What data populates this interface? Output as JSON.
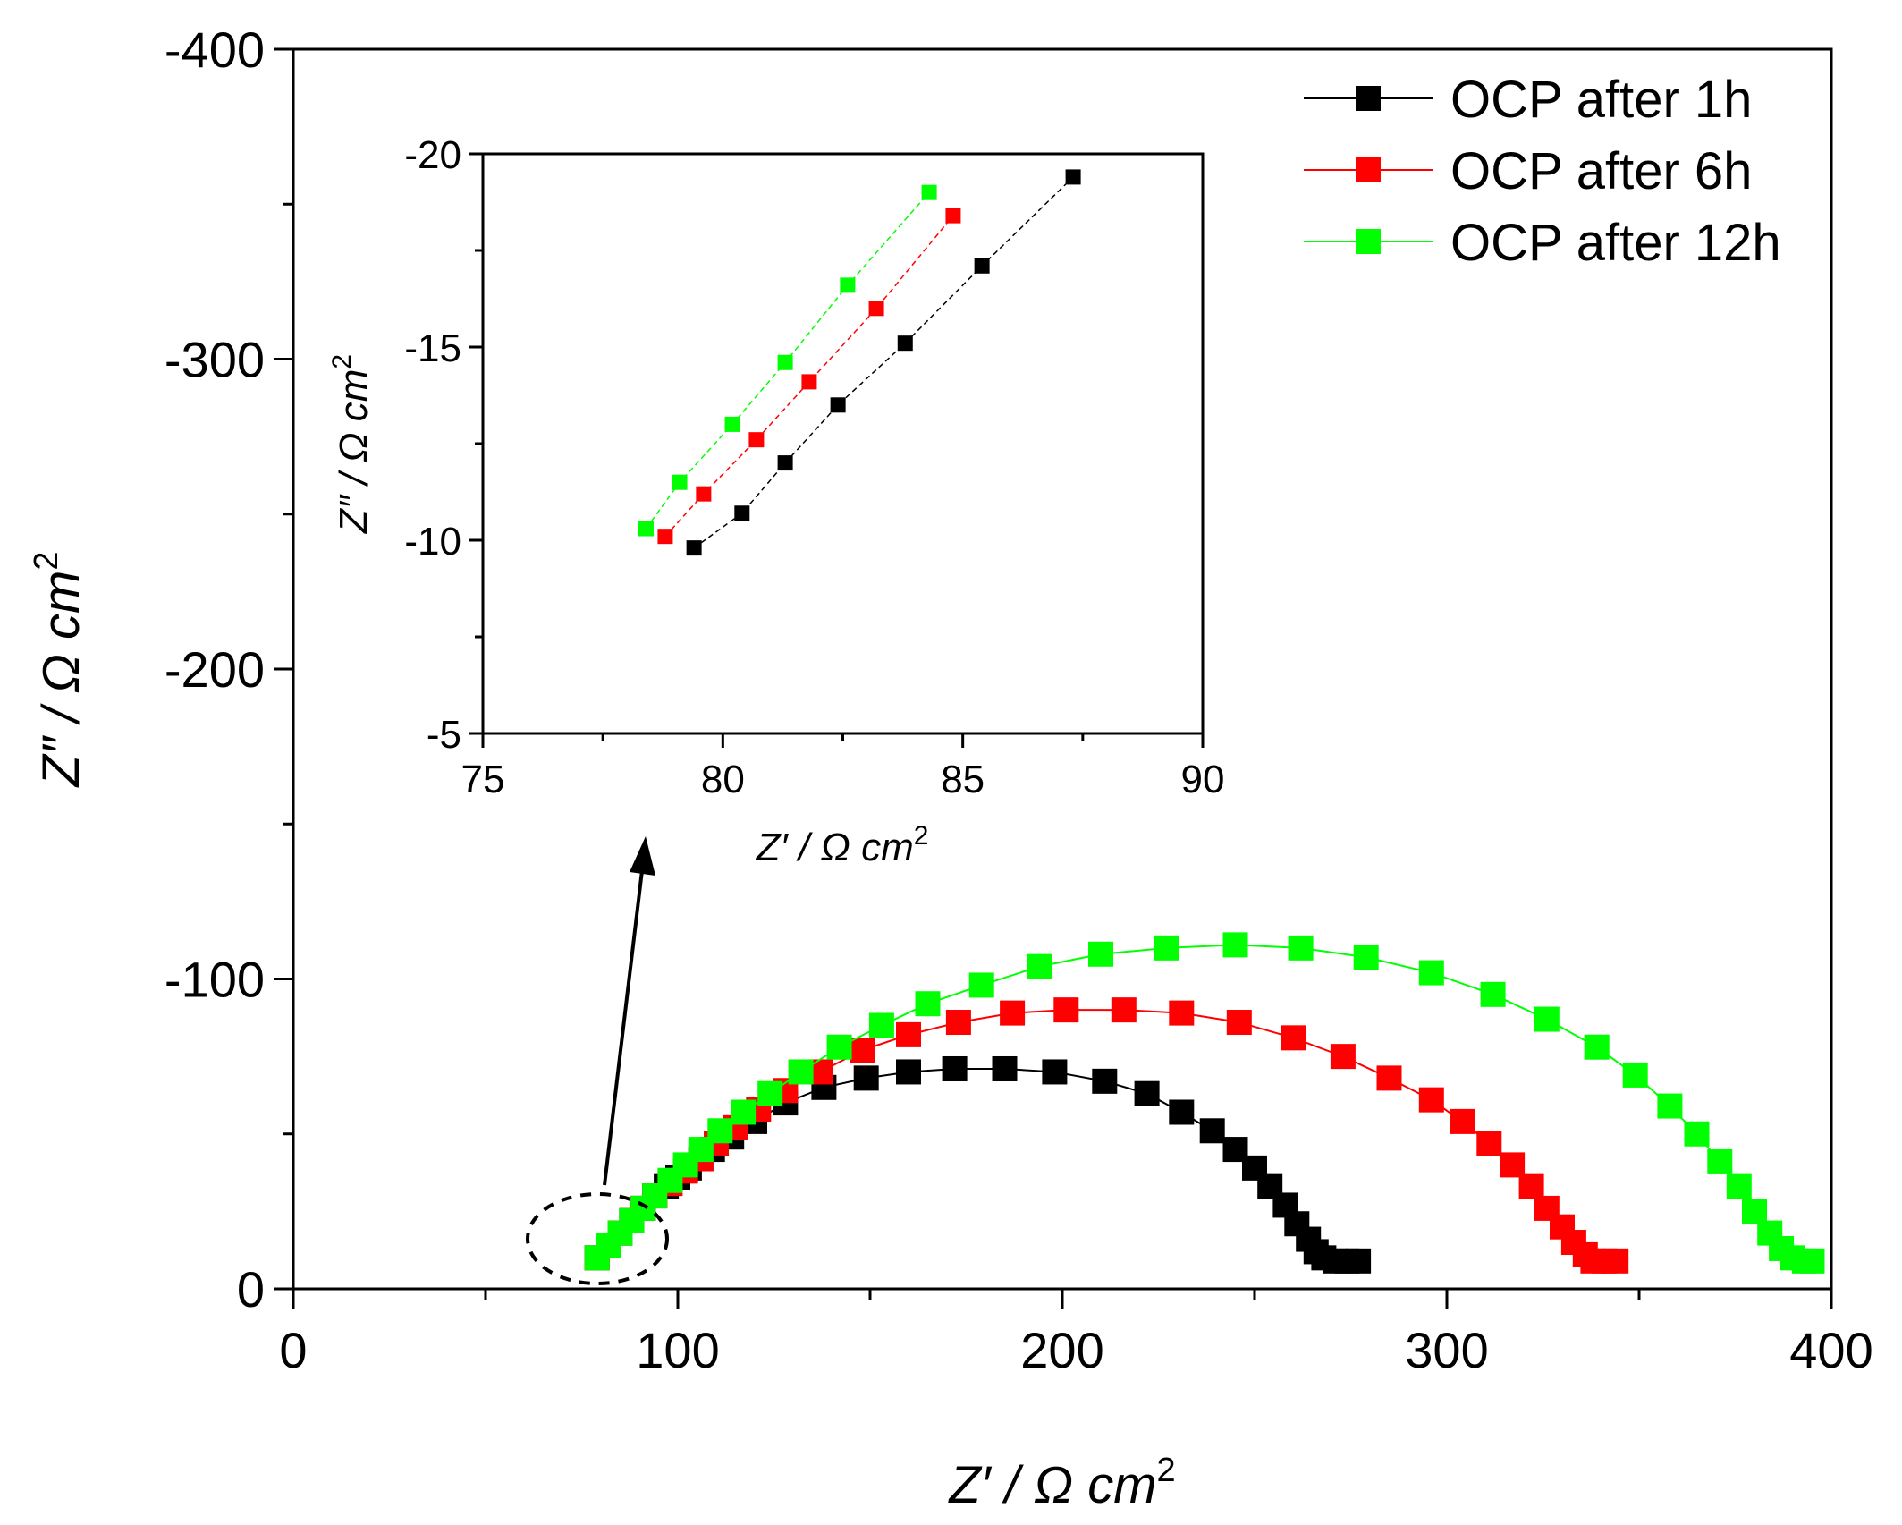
{
  "chart_data": {
    "type": "scatter",
    "series_style": "line with square markers",
    "main": {
      "xlabel": "Z′ / Ω cm",
      "ylabel": "Z″ / Ω cm",
      "unit_superscript": "2",
      "xlim": [
        0,
        400
      ],
      "ylim": [
        0,
        -400
      ],
      "xticks": [
        0,
        100,
        200,
        300,
        400
      ],
      "yticks": [
        0,
        -100,
        -200,
        -300,
        -400
      ],
      "xtick_labels": [
        "0",
        "100",
        "200",
        "300",
        "400"
      ],
      "ytick_labels": [
        "0",
        "-100",
        "-200",
        "-300",
        "-400"
      ],
      "legend": "top-right",
      "grid": false,
      "annotation": "dashed ellipse around high-frequency region (~80 Ω cm2) with arrow pointing to inset"
    },
    "inset": {
      "xlabel": "Z′ / Ω cm",
      "ylabel": "Z″ / Ω cm",
      "unit_superscript": "2",
      "xlim": [
        75,
        90
      ],
      "ylim": [
        -5,
        -20
      ],
      "xticks": [
        75,
        80,
        85,
        90
      ],
      "yticks": [
        -5,
        -10,
        -15,
        -20
      ],
      "xtick_labels": [
        "75",
        "80",
        "85",
        "90"
      ],
      "ytick_labels": [
        "-5",
        "-10",
        "-15",
        "-20"
      ]
    },
    "series": [
      {
        "name": "OCP after 1h",
        "color": "#000000",
        "x": [
          79,
          82,
          85,
          88,
          91,
          94,
          97,
          100,
          103,
          106,
          109,
          114,
          120,
          128,
          138,
          149,
          160,
          172,
          185,
          198,
          211,
          222,
          231,
          239,
          245,
          250,
          254,
          258,
          261,
          264,
          266,
          268,
          271,
          274,
          277
        ],
        "y": [
          -10,
          -14,
          -18,
          -22,
          -26,
          -30,
          -33,
          -36,
          -39,
          -42,
          -45,
          -49,
          -54,
          -60,
          -65,
          -68,
          -70,
          -71,
          -71,
          -70,
          -67,
          -63,
          -57,
          -51,
          -45,
          -39,
          -33,
          -27,
          -21,
          -16,
          -12,
          -10,
          -9,
          -9,
          -9
        ]
      },
      {
        "name": "OCP after 6h",
        "color": "#ff0000",
        "x": [
          79,
          82,
          85,
          88,
          91,
          94,
          98,
          102,
          106,
          110,
          115,
          121,
          128,
          137,
          148,
          160,
          173,
          187,
          201,
          216,
          231,
          246,
          260,
          273,
          285,
          296,
          304,
          311,
          317,
          322,
          326,
          330,
          333,
          336,
          338,
          341,
          344
        ],
        "y": [
          -10,
          -14,
          -18,
          -22,
          -26,
          -30,
          -34,
          -38,
          -42,
          -47,
          -52,
          -58,
          -64,
          -70,
          -77,
          -82,
          -86,
          -89,
          -90,
          -90,
          -89,
          -86,
          -81,
          -75,
          -68,
          -61,
          -54,
          -47,
          -40,
          -33,
          -26,
          -20,
          -15,
          -11,
          -9,
          -9,
          -9
        ]
      },
      {
        "name": "OCP after 12h",
        "color": "#00ff00",
        "x": [
          79,
          82,
          85,
          88,
          91,
          94,
          98,
          102,
          106,
          111,
          117,
          124,
          132,
          142,
          153,
          165,
          179,
          194,
          210,
          227,
          245,
          262,
          279,
          296,
          312,
          326,
          339,
          349,
          358,
          365,
          371,
          376,
          380,
          384,
          387,
          390,
          393,
          395
        ],
        "y": [
          -10,
          -14,
          -18,
          -22,
          -26,
          -30,
          -35,
          -40,
          -45,
          -51,
          -57,
          -63,
          -70,
          -78,
          -85,
          -92,
          -98,
          -104,
          -108,
          -110,
          -111,
          -110,
          -107,
          -102,
          -95,
          -87,
          -78,
          -69,
          -59,
          -50,
          -41,
          -33,
          -25,
          -18,
          -13,
          -10,
          -9,
          -9
        ]
      }
    ],
    "inset_series": [
      {
        "name": "OCP after 1h",
        "color": "#000000",
        "x": [
          79.4,
          80.4,
          81.3,
          82.4,
          83.8,
          85.4,
          87.3
        ],
        "y": [
          -9.8,
          -10.7,
          -12.0,
          -13.5,
          -15.1,
          -17.1,
          -19.4
        ]
      },
      {
        "name": "OCP after 6h",
        "color": "#ff0000",
        "x": [
          78.8,
          79.6,
          80.7,
          81.8,
          83.2,
          84.8
        ],
        "y": [
          -10.1,
          -11.2,
          -12.6,
          -14.1,
          -16.0,
          -18.4
        ]
      },
      {
        "name": "OCP after 12h",
        "color": "#00ff00",
        "x": [
          78.4,
          79.1,
          80.2,
          81.3,
          82.6,
          84.3
        ],
        "y": [
          -10.3,
          -11.5,
          -13.0,
          -14.6,
          -16.6,
          -19.0
        ]
      }
    ]
  }
}
